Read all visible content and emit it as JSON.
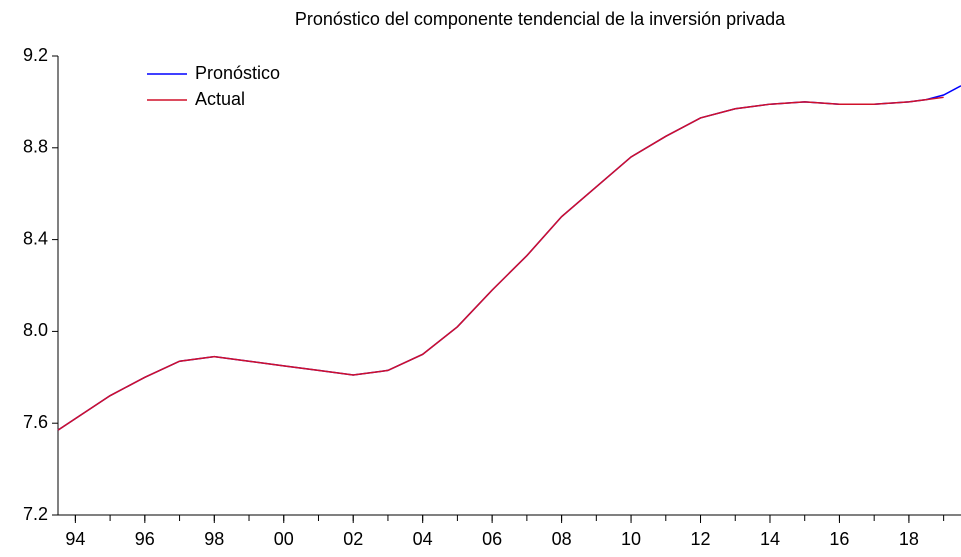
{
  "chart_data": {
    "type": "line",
    "title": "Pronóstico del componente tendencial de la inversión privada",
    "x": [
      1993.5,
      1994,
      1995,
      1996,
      1997,
      1998,
      1999,
      2000,
      2001,
      2002,
      2003,
      2004,
      2005,
      2006,
      2007,
      2008,
      2009,
      2010,
      2011,
      2012,
      2013,
      2014,
      2015,
      2016,
      2017,
      2018,
      2018.5,
      2019,
      2019.5
    ],
    "series": [
      {
        "name": "Pronóstico",
        "color": "#0000ff",
        "values": [
          7.57,
          7.62,
          7.72,
          7.8,
          7.87,
          7.89,
          7.87,
          7.85,
          7.83,
          7.81,
          7.83,
          7.9,
          8.02,
          8.18,
          8.33,
          8.5,
          8.63,
          8.76,
          8.85,
          8.93,
          8.97,
          8.99,
          9.0,
          8.99,
          8.99,
          9.0,
          9.01,
          9.03,
          9.07
        ]
      },
      {
        "name": "Actual",
        "color": "#d0102a",
        "values": [
          7.57,
          7.62,
          7.72,
          7.8,
          7.87,
          7.89,
          7.87,
          7.85,
          7.83,
          7.81,
          7.83,
          7.9,
          8.02,
          8.18,
          8.33,
          8.5,
          8.63,
          8.76,
          8.85,
          8.93,
          8.97,
          8.99,
          9.0,
          8.99,
          8.99,
          9.0,
          9.01,
          9.02,
          null
        ]
      }
    ],
    "xlim": [
      1993.5,
      2019.5
    ],
    "xticks": [
      {
        "value": 1994,
        "label": "94"
      },
      {
        "value": 1996,
        "label": "96"
      },
      {
        "value": 1998,
        "label": "98"
      },
      {
        "value": 2000,
        "label": "00"
      },
      {
        "value": 2002,
        "label": "02"
      },
      {
        "value": 2004,
        "label": "04"
      },
      {
        "value": 2006,
        "label": "06"
      },
      {
        "value": 2008,
        "label": "08"
      },
      {
        "value": 2010,
        "label": "10"
      },
      {
        "value": 2012,
        "label": "12"
      },
      {
        "value": 2014,
        "label": "14"
      },
      {
        "value": 2016,
        "label": "16"
      },
      {
        "value": 2018,
        "label": "18"
      }
    ],
    "ylim": [
      7.2,
      9.2
    ],
    "yticks": [
      7.2,
      7.6,
      {
        "value": 8,
        "label": "8.0"
      },
      8.4,
      8.8,
      9.2
    ],
    "legend": "upper left",
    "grid": false
  }
}
